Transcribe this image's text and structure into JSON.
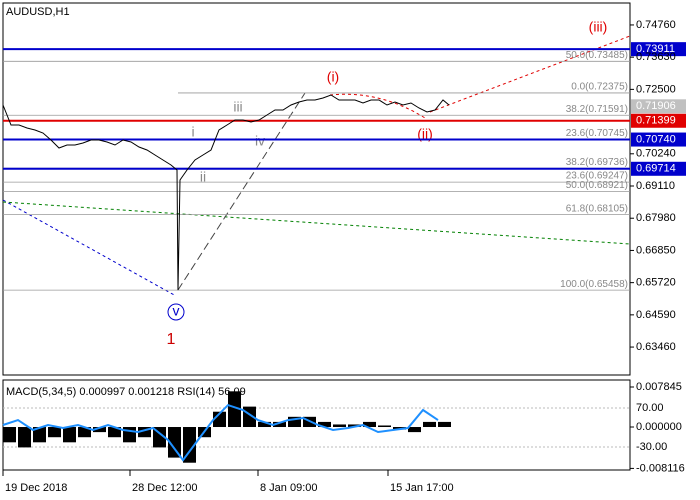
{
  "chart_data": [
    {
      "type": "line",
      "title": "AUDUSD,H1",
      "color": "#000000",
      "x": [
        0,
        8,
        16,
        24,
        32,
        40,
        48,
        56,
        64,
        72,
        80,
        88,
        96,
        104,
        112,
        120,
        128,
        136,
        144,
        152,
        160,
        168,
        174,
        175,
        177,
        184,
        192,
        200,
        208,
        216,
        224,
        232,
        240,
        248,
        256,
        264,
        272,
        280,
        288,
        296,
        304,
        312,
        320,
        328,
        336,
        344,
        352,
        360,
        368,
        376,
        384,
        392,
        400,
        408,
        416,
        424,
        432,
        440,
        446
      ],
      "values": [
        0.71952,
        0.7125,
        0.7125,
        0.71145,
        0.71075,
        0.70969,
        0.70724,
        0.70443,
        0.70548,
        0.70548,
        0.70618,
        0.70724,
        0.70724,
        0.70653,
        0.70548,
        0.70724,
        0.70653,
        0.70478,
        0.70373,
        0.70197,
        0.70022,
        0.69846,
        0.69671,
        0.65459,
        0.6932,
        0.69671,
        0.70022,
        0.70197,
        0.70373,
        0.71075,
        0.7125,
        0.71425,
        0.71425,
        0.71355,
        0.71425,
        0.71601,
        0.71777,
        0.71777,
        0.71952,
        0.72057,
        0.72128,
        0.72128,
        0.72198,
        0.72303,
        0.72128,
        0.72128,
        0.72128,
        0.72022,
        0.72128,
        0.72128,
        0.71952,
        0.72057,
        0.71952,
        0.72022,
        0.71847,
        0.71706,
        0.71777,
        0.72128,
        0.71952
      ],
      "xlim": [
        0,
        627
      ],
      "ylim": [
        0.6248,
        0.7553
      ],
      "xticks": [
        {
          "value": 0,
          "label": "19 Dec 2018"
        },
        {
          "value": 127,
          "label": "28 Dec 12:00"
        },
        {
          "value": 255,
          "label": "8 Jan 09:00"
        },
        {
          "value": 385,
          "label": "15 Jan 17:00"
        }
      ],
      "yticks": [
        {
          "value": 0.7476,
          "label": "0.74760"
        },
        {
          "value": 0.7363,
          "label": "0.73630"
        },
        {
          "value": 0.725,
          "label": "0.72500"
        },
        {
          "value": 0.7024,
          "label": "0.70240"
        },
        {
          "value": 0.6911,
          "label": "0.69110"
        },
        {
          "value": 0.6798,
          "label": "0.67980"
        },
        {
          "value": 0.6685,
          "label": "0.66850"
        },
        {
          "value": 0.6572,
          "label": "0.65720"
        },
        {
          "value": 0.6459,
          "label": "0.64590"
        },
        {
          "value": 0.6346,
          "label": "0.63460"
        }
      ],
      "markers": [
        {
          "value": 0.73911,
          "label": "0.73911",
          "color": "#0000cc"
        },
        {
          "value": 0.71906,
          "label": "0.71906",
          "color": "#c0c0c0"
        },
        {
          "value": 0.71399,
          "label": "0.71399",
          "color": "#e00000"
        },
        {
          "value": 0.7074,
          "label": "0.70740",
          "color": "#0000cc"
        },
        {
          "value": 0.69714,
          "label": "0.69714",
          "color": "#0000cc"
        }
      ],
      "levels": [
        {
          "value": 0.73485,
          "label": "50.0(0.73485)"
        },
        {
          "value": 0.72375,
          "label": "0.0(0.72375)"
        },
        {
          "value": 0.71591,
          "label": "38.2(0.71591)"
        },
        {
          "value": 0.70745,
          "label": "23.6(0.70745)"
        },
        {
          "value": 0.69736,
          "label": "38.2(0.69736)"
        },
        {
          "value": 0.69247,
          "label": "23.6(0.69247)"
        },
        {
          "value": 0.68921,
          "label": "50.0(0.68921)"
        },
        {
          "value": 0.68105,
          "label": "61.8(0.68105)"
        },
        {
          "value": 0.65458,
          "label": "100.0(0.65458)"
        }
      ],
      "annotations": [
        "(iii)",
        "(i)",
        "(ii)",
        "iii",
        "i",
        "ii",
        "iv",
        "v",
        "1"
      ]
    },
    {
      "type": "bar",
      "title": "MACD(5,34,5) 0.000997 0.001218 RSI(14) 56.09",
      "x": [
        0,
        15,
        30,
        45,
        60,
        75,
        90,
        105,
        120,
        135,
        150,
        165,
        180,
        195,
        210,
        225,
        240,
        255,
        270,
        285,
        300,
        315,
        330,
        345,
        360,
        375,
        390,
        405,
        420,
        435
      ],
      "series": [
        {
          "name": "MACD",
          "color": "#000000",
          "values": [
            -0.003,
            -0.004,
            -0.003,
            -0.002,
            -0.003,
            -0.002,
            -0.001,
            -0.002,
            -0.003,
            -0.002,
            -0.004,
            -0.006,
            -0.007,
            -0.002,
            0.003,
            0.007,
            0.004,
            0.001,
            0.001,
            0.002,
            0.002,
            0.001,
            0.0005,
            0.0005,
            0.001,
            0.0003,
            -0.0005,
            -0.001,
            0.001,
            0.001
          ]
        },
        {
          "name": "RSI(14)",
          "color": "#1e90ff",
          "axis": "y2",
          "values": [
            26.4,
            39.2,
            13.6,
            26.4,
            18.7,
            26.4,
            13.6,
            26.4,
            13.6,
            8.5,
            18.7,
            -12,
            -63.6,
            -12,
            39.2,
            77.7,
            64.9,
            39.2,
            26.4,
            39.2,
            44.4,
            26.4,
            13.6,
            18.7,
            26.4,
            8.5,
            13.6,
            18.7,
            64.9,
            39.2
          ]
        }
      ],
      "xlim": [
        0,
        627
      ],
      "ylim": [
        -0.00843,
        0.00922
      ],
      "y2lim": [
        -89,
        142
      ],
      "yticks": [
        0.007845,
        {
          "value": 0,
          "label": "0.000000"
        },
        -0.008116
      ],
      "y2ticks": [
        {
          "value": 70,
          "label": "70.00"
        },
        {
          "value": -30,
          "label": "-30.00"
        }
      ]
    }
  ]
}
